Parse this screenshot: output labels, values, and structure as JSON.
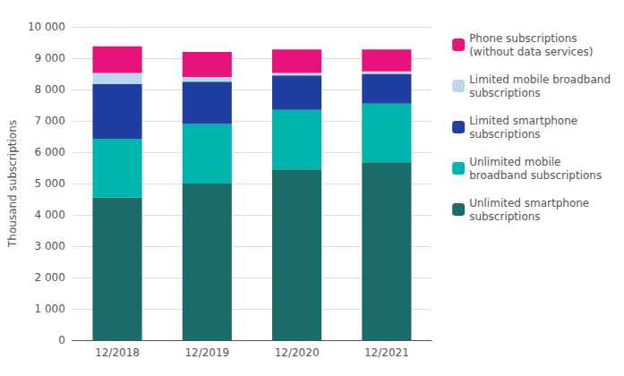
{
  "chart_data": {
    "type": "bar",
    "stacked": true,
    "categories": [
      "12/2018",
      "12/2019",
      "12/2020",
      "12/2021"
    ],
    "series": [
      {
        "name": "Unlimited smartphone\nsubscriptions",
        "color": "#1b6b6b",
        "values": [
          4550,
          5000,
          5450,
          5680
        ]
      },
      {
        "name": "Unlimited mobile\nbroadband subscriptions",
        "color": "#00b5ad",
        "values": [
          1880,
          1900,
          1900,
          1870
        ]
      },
      {
        "name": "Limited smartphone\nsubscriptions",
        "color": "#1f3fa0",
        "values": [
          1750,
          1350,
          1100,
          950
        ]
      },
      {
        "name": "Limited mobile broadband\nsubscriptions",
        "color": "#b8d8f0",
        "values": [
          350,
          150,
          80,
          80
        ]
      },
      {
        "name": "Phone subscriptions\n(without data services)",
        "color": "#e8137a",
        "values": [
          850,
          800,
          750,
          700
        ]
      }
    ],
    "ylabel": "Thousand subscriptions",
    "ylim": [
      0,
      10000
    ],
    "yticks": [
      0,
      {
        "value": 1000,
        "label": "1 000"
      },
      {
        "value": 2000,
        "label": "2 000"
      },
      {
        "value": 3000,
        "label": "3 000"
      },
      {
        "value": 4000,
        "label": "4 000"
      },
      {
        "value": 5000,
        "label": "5 000"
      },
      {
        "value": 6000,
        "label": "6 000"
      },
      {
        "value": 7000,
        "label": "7 000"
      },
      {
        "value": 8000,
        "label": "8 000"
      },
      {
        "value": 9000,
        "label": "9 000"
      },
      {
        "value": 10000,
        "label": "10 000"
      }
    ],
    "grid": true,
    "legend": "right"
  }
}
